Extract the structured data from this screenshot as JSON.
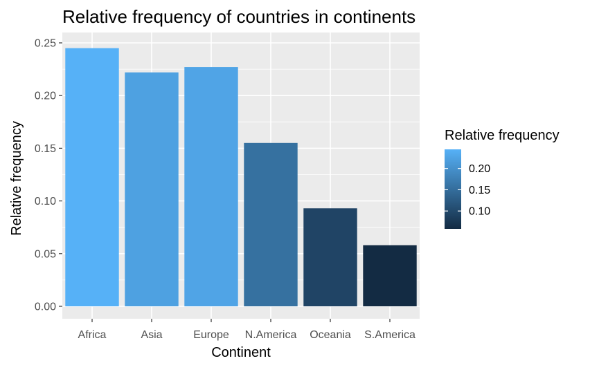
{
  "chart_data": {
    "type": "bar",
    "title": "Relative frequency of countries in continents",
    "xlabel": "Continent",
    "ylabel": "Relative frequency",
    "categories": [
      "Africa",
      "Asia",
      "Europe",
      "N.America",
      "Oceania",
      "S.America"
    ],
    "values": [
      0.245,
      0.222,
      0.227,
      0.155,
      0.093,
      0.058
    ],
    "ylim": [
      0,
      0.255
    ],
    "yticks": [
      0.0,
      0.05,
      0.1,
      0.15,
      0.2,
      0.25
    ],
    "ytick_labels": [
      "0.00",
      "0.05",
      "0.10",
      "0.15",
      "0.20",
      "0.25"
    ],
    "grid": true,
    "panel_background": "#ebebeb",
    "grid_color": "#ffffff",
    "legend": {
      "title": "Relative frequency",
      "placement": "right",
      "type": "colorbar",
      "range": [
        0.058,
        0.245
      ],
      "breaks": [
        0.1,
        0.15,
        0.2
      ],
      "labels": [
        "0.10",
        "0.15",
        "0.20"
      ],
      "low_color": "#132b43",
      "high_color": "#56b1f7"
    }
  }
}
